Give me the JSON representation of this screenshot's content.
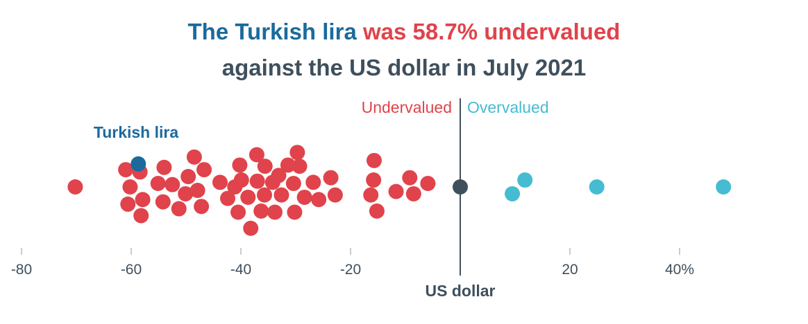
{
  "title": {
    "part1": "The Turkish lira",
    "part2": "was 58.7% undervalued",
    "line2": "against the US dollar in July 2021"
  },
  "colors": {
    "highlight": "#1b6a9d",
    "undervalued": "#e0434b",
    "overvalued": "#45bcd1",
    "baseline": "#3f4f5c",
    "text": "#3f4f5c"
  },
  "labels": {
    "undervalued": "Undervalued",
    "overvalued": "Overvalued",
    "highlight": "Turkish lira",
    "baseline": "US dollar"
  },
  "chart_data": {
    "type": "scatter",
    "xlim": [
      -80,
      50
    ],
    "ticks": [
      {
        "value": -80,
        "label": "-80"
      },
      {
        "value": -60,
        "label": "-60"
      },
      {
        "value": -40,
        "label": "-40"
      },
      {
        "value": -20,
        "label": "-20"
      },
      {
        "value": 20,
        "label": "20"
      },
      {
        "value": 40,
        "label": "40%"
      }
    ],
    "reference": {
      "value": 0,
      "label": "US dollar"
    },
    "highlight": {
      "label": "Turkish lira",
      "value": -58.7,
      "y": 2
    },
    "points": [
      {
        "x": -70.2,
        "y": 0
      },
      {
        "x": -61.0,
        "y": 1.5
      },
      {
        "x": -60.2,
        "y": 0
      },
      {
        "x": -60.6,
        "y": -1.5
      },
      {
        "x": -58.4,
        "y": 1.3
      },
      {
        "x": -57.9,
        "y": -1.1
      },
      {
        "x": -58.2,
        "y": -2.5
      },
      {
        "x": -55.1,
        "y": 0.3
      },
      {
        "x": -54.0,
        "y": 1.7
      },
      {
        "x": -54.2,
        "y": -1.3
      },
      {
        "x": -52.5,
        "y": 0.2
      },
      {
        "x": -51.3,
        "y": -1.9
      },
      {
        "x": -50.1,
        "y": -0.6
      },
      {
        "x": -49.6,
        "y": 0.9
      },
      {
        "x": -48.5,
        "y": 2.6
      },
      {
        "x": -47.9,
        "y": -0.3
      },
      {
        "x": -47.2,
        "y": -1.7
      },
      {
        "x": -46.7,
        "y": 1.5
      },
      {
        "x": -43.8,
        "y": 0.4
      },
      {
        "x": -42.4,
        "y": -1.0
      },
      {
        "x": -41.1,
        "y": 0
      },
      {
        "x": -40.5,
        "y": -2.2
      },
      {
        "x": -40.2,
        "y": 1.9
      },
      {
        "x": -39.9,
        "y": 0.6
      },
      {
        "x": -38.7,
        "y": -0.9
      },
      {
        "x": -38.2,
        "y": -3.6
      },
      {
        "x": -37.1,
        "y": 2.8
      },
      {
        "x": -37.0,
        "y": 0.5
      },
      {
        "x": -36.3,
        "y": -2.1
      },
      {
        "x": -35.7,
        "y": -0.7
      },
      {
        "x": -35.6,
        "y": 1.8
      },
      {
        "x": -34.2,
        "y": 0.4
      },
      {
        "x": -33.8,
        "y": -2.2
      },
      {
        "x": -33.1,
        "y": 1.0
      },
      {
        "x": -32.6,
        "y": -0.7
      },
      {
        "x": -31.4,
        "y": 1.9
      },
      {
        "x": -30.4,
        "y": 0.3
      },
      {
        "x": -30.2,
        "y": -2.2
      },
      {
        "x": -29.7,
        "y": 3.0
      },
      {
        "x": -29.3,
        "y": 1.8
      },
      {
        "x": -28.4,
        "y": -0.9
      },
      {
        "x": -26.8,
        "y": 0.4
      },
      {
        "x": -25.8,
        "y": -1.1
      },
      {
        "x": -23.6,
        "y": 0.8
      },
      {
        "x": -22.8,
        "y": -0.7
      },
      {
        "x": -16.3,
        "y": -0.7
      },
      {
        "x": -15.8,
        "y": 0.6
      },
      {
        "x": -15.7,
        "y": 2.3
      },
      {
        "x": -15.2,
        "y": -2.1
      },
      {
        "x": -11.7,
        "y": -0.4
      },
      {
        "x": -9.2,
        "y": 0.8
      },
      {
        "x": -8.5,
        "y": -0.6
      },
      {
        "x": -5.9,
        "y": 0.3
      },
      {
        "x": 9.5,
        "y": -0.6
      },
      {
        "x": 11.8,
        "y": 0.6
      },
      {
        "x": 24.9,
        "y": 0
      },
      {
        "x": 48.0,
        "y": 0
      }
    ]
  }
}
